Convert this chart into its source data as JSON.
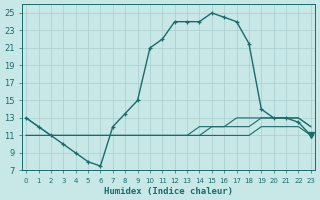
{
  "xlabel": "Humidex (Indice chaleur)",
  "bg_color": "#c8e8e8",
  "grid_color": "#a8cccc",
  "line_color": "#1a6b6b",
  "xlim": [
    -0.3,
    23.3
  ],
  "ylim": [
    7,
    26
  ],
  "xticks": [
    0,
    1,
    2,
    3,
    4,
    5,
    6,
    7,
    8,
    9,
    10,
    11,
    12,
    13,
    14,
    15,
    16,
    17,
    18,
    19,
    20,
    21,
    22,
    23
  ],
  "yticks": [
    7,
    9,
    11,
    13,
    15,
    17,
    19,
    21,
    23,
    25
  ],
  "main_x": [
    0,
    1,
    2,
    3,
    4,
    5,
    6,
    7,
    8,
    9,
    10,
    11,
    12,
    13,
    14,
    15,
    16,
    17,
    18,
    19,
    20,
    21,
    22,
    23
  ],
  "main_y": [
    13,
    12,
    11,
    10,
    9,
    8,
    7.5,
    12,
    13.5,
    15,
    21,
    22,
    24,
    24,
    24,
    25,
    24.5,
    24,
    21.5,
    14,
    13,
    13,
    12.5,
    11
  ],
  "flat1_x": [
    0,
    2,
    3,
    5,
    6,
    7,
    8,
    9,
    10,
    11,
    12,
    13,
    14,
    15,
    16,
    17,
    18,
    19,
    20,
    21,
    22,
    23
  ],
  "flat1_y": [
    11,
    11,
    11,
    11,
    11,
    11,
    11,
    11,
    11,
    11,
    11,
    11,
    11,
    11,
    11,
    11,
    11,
    12,
    12,
    12,
    12,
    11
  ],
  "flat2_x": [
    0,
    2,
    3,
    5,
    6,
    7,
    8,
    9,
    10,
    11,
    12,
    13,
    14,
    15,
    16,
    17,
    18,
    19,
    20,
    21,
    22,
    23
  ],
  "flat2_y": [
    11,
    11,
    11,
    11,
    11,
    11,
    11,
    11,
    11,
    11,
    11,
    11,
    11,
    12,
    12,
    12,
    12,
    13,
    13,
    13,
    13,
    12
  ],
  "flat3_x": [
    0,
    2,
    3,
    5,
    6,
    7,
    8,
    9,
    10,
    11,
    12,
    13,
    14,
    15,
    16,
    17,
    18,
    19,
    20,
    21,
    22,
    23
  ],
  "flat3_y": [
    13,
    11,
    11,
    11,
    11,
    11,
    11,
    11,
    11,
    11,
    11,
    11,
    12,
    12,
    12,
    13,
    13,
    13,
    13,
    13,
    13,
    12
  ]
}
